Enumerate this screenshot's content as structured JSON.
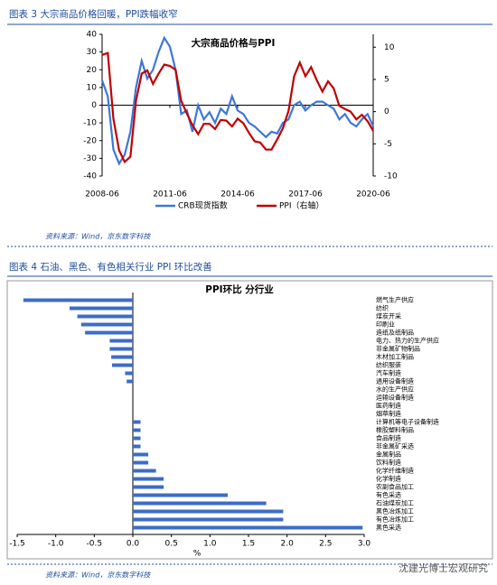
{
  "chart_data": [
    {
      "type": "line",
      "caption": "图表 3 大宗商品价格回暖，PPI跌幅收窄",
      "title": "大宗商品价格与PPI",
      "source": "资料来源：Wind，京东数字科技",
      "x": [
        "2008-06",
        "2008-09",
        "2008-12",
        "2009-03",
        "2009-06",
        "2009-09",
        "2009-12",
        "2010-03",
        "2010-06",
        "2010-09",
        "2010-12",
        "2011-03",
        "2011-06",
        "2011-09",
        "2011-12",
        "2012-03",
        "2012-06",
        "2012-09",
        "2012-12",
        "2013-03",
        "2013-06",
        "2013-09",
        "2013-12",
        "2014-03",
        "2014-06",
        "2014-09",
        "2014-12",
        "2015-03",
        "2015-06",
        "2015-09",
        "2015-12",
        "2016-03",
        "2016-06",
        "2016-09",
        "2016-12",
        "2017-03",
        "2017-06",
        "2017-09",
        "2017-12",
        "2018-03",
        "2018-06",
        "2018-09",
        "2018-12",
        "2019-03",
        "2019-06",
        "2019-09",
        "2019-12",
        "2020-03",
        "2020-06"
      ],
      "xlim": [
        "2008-06",
        "2020-06"
      ],
      "xticks": [
        "2008-06",
        "2011-06",
        "2014-06",
        "2017-06",
        "2020-06"
      ],
      "series": [
        {
          "name": "CRB现货指数",
          "color": "#3c78d8",
          "values": [
            14,
            5,
            -25,
            -33,
            -28,
            -15,
            10,
            25,
            15,
            20,
            30,
            38,
            33,
            20,
            -5,
            -3,
            -15,
            0,
            -8,
            -4,
            -10,
            -2,
            -5,
            5,
            -3,
            -5,
            -10,
            -12,
            -15,
            -18,
            -15,
            -16,
            -10,
            -8,
            0,
            2,
            -3,
            0,
            2,
            2,
            0,
            -2,
            -8,
            -5,
            -10,
            -12,
            -8,
            -5,
            -12
          ]
        },
        {
          "name": "PPI（右轴）",
          "color": "#c00000",
          "axis": "y2",
          "values": [
            8.8,
            9.1,
            -1.1,
            -6,
            -7.8,
            -7,
            1.7,
            5.9,
            6.4,
            4.3,
            5.9,
            7.3,
            7.1,
            6.5,
            1.7,
            -0.3,
            -2.1,
            -3.5,
            -1.9,
            -1.9,
            -2.7,
            -1.3,
            -1.4,
            -2.3,
            -1.1,
            -1.8,
            -3.3,
            -4.6,
            -4.8,
            -5.9,
            -5.9,
            -4.3,
            -2.6,
            0.1,
            5.5,
            7.6,
            5.5,
            6.9,
            4.9,
            3.1,
            4.7,
            3.6,
            0.9,
            0.4,
            0,
            -1.2,
            -0.5,
            -1.5,
            -3
          ]
        }
      ],
      "ylim": [
        -40,
        40
      ],
      "yticks": [
        -40,
        -30,
        -20,
        -10,
        0,
        10,
        20,
        30,
        40
      ],
      "y2lim": [
        -10,
        12
      ],
      "y2ticks": [
        -10,
        -5,
        0,
        5,
        10
      ]
    },
    {
      "type": "barh",
      "caption": "图表 4 石油、黑色、有色相关行业 PPI 环比改善",
      "title": "PPI环比 分行业",
      "source": "资料来源：Wind，京东数字科技",
      "xlabel": "%",
      "color": "#3c6cc8",
      "categories": [
        "燃气生产供应",
        "纺织",
        "煤炭开采",
        "印刷业",
        "造纸及纸制品",
        "电力、热力的生产供应",
        "非金属矿物制品",
        "木材加工制品",
        "纺织服装",
        "汽车制造",
        "通用设备制造",
        "水的生产供应",
        "运输设备制造",
        "医药制造",
        "烟草制造",
        "计算机等电子设备制造",
        "橡胶塑料制品",
        "食品制造",
        "非金属矿采选",
        "金属制品",
        "饮料制造",
        "化学纤维制造",
        "化学制造",
        "农副食品加工",
        "有色采选",
        "石油煤炭加工",
        "黑色冶炼加工",
        "有色冶炼加工",
        "黑色采选"
      ],
      "values": [
        -1.42,
        -0.82,
        -0.72,
        -0.67,
        -0.62,
        -0.3,
        -0.3,
        -0.28,
        -0.27,
        -0.1,
        -0.08,
        0,
        0,
        0,
        0,
        0.1,
        0.1,
        0.1,
        0.1,
        0.2,
        0.2,
        0.3,
        0.4,
        0.4,
        1.23,
        1.73,
        1.95,
        1.95,
        2.98
      ],
      "xlim": [
        -1.5,
        3.0
      ],
      "xticks": [
        -1.5,
        {
          "value": -1.0,
          "label": "-1.0"
        },
        -0.5,
        {
          "value": 0,
          "label": "0.0"
        },
        0.5,
        {
          "value": 1.0,
          "label": "1.0"
        },
        1.5,
        {
          "value": 2.0,
          "label": "2.0"
        },
        2.5,
        {
          "value": 3.0,
          "label": "3.0"
        }
      ]
    }
  ],
  "watermark": "沈建光博士宏观研究"
}
